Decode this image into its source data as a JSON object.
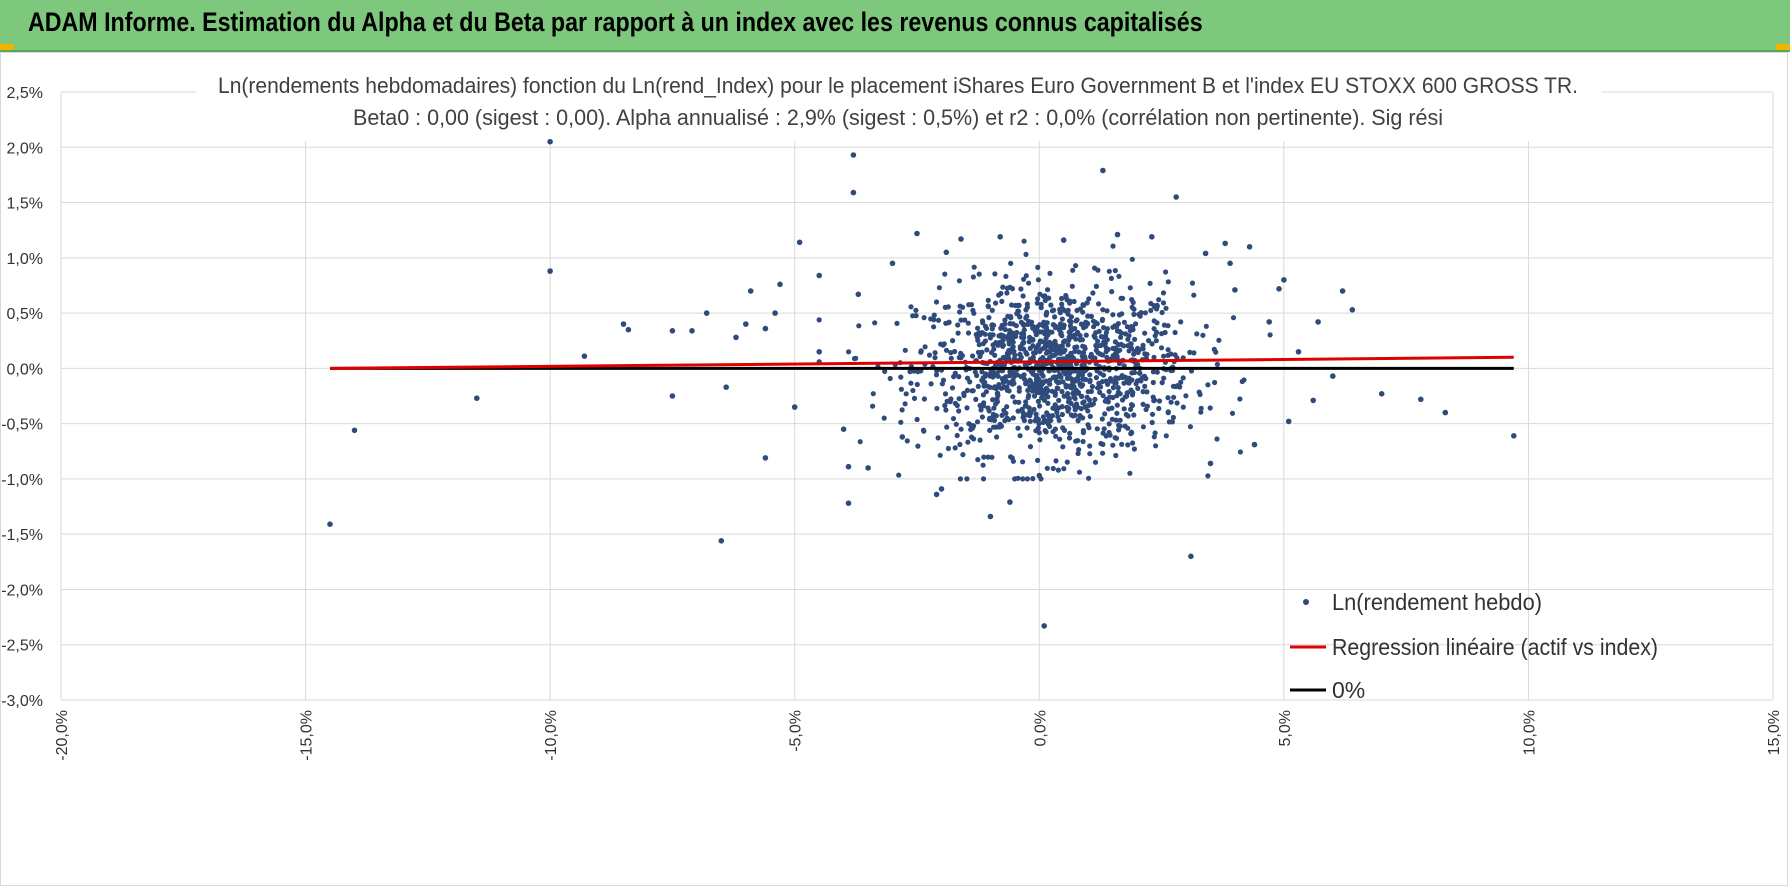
{
  "header": {
    "title": "ADAM Informe. Estimation du Alpha et du Beta par rapport à un index avec les revenus connus capitalisés"
  },
  "colors": {
    "header_bg": "#7ec87e",
    "corner_accent": "#f2b300",
    "points": "#2f4b7c",
    "regression": "#e00000",
    "zero_line": "#000000",
    "grid": "#d9d9d9"
  },
  "chart_data": {
    "type": "scatter",
    "title": "Ln(rendements hebdomadaires) fonction du Ln(rend_Index) pour le placement iShares Euro Government B et l'index EU STOXX 600 GROSS TR.",
    "subtitle": "Beta0 : 0,00 (sigest : 0,00).  Alpha annualisé : 2,9% (sigest : 0,5%) et r2 : 0,0% (corrélation non pertinente). Sig rési",
    "xlabel": "",
    "ylabel": "",
    "xlim": [
      -20,
      15
    ],
    "ylim": [
      -3.0,
      2.5
    ],
    "x_ticks": [
      "-20,0%",
      "-15,0%",
      "-10,0%",
      "-5,0%",
      "0,0%",
      "5,0%",
      "10,0%",
      "15,0%"
    ],
    "y_ticks": [
      "2,5%",
      "2,0%",
      "1,5%",
      "1,0%",
      "0,5%",
      "0,0%",
      "-0,5%",
      "-1,0%",
      "-1,5%",
      "-2,0%",
      "-2,5%",
      "-3,0%"
    ],
    "grid": "vertical and horizontal",
    "legend_position": "bottom-right",
    "legend": [
      "Ln(rendement hebdo)",
      "Regression linéaire (actif vs index)",
      "0%"
    ],
    "series": [
      {
        "name": "Ln(rendement hebdo)",
        "kind": "scatter",
        "points": [
          [
            -14.5,
            -1.41
          ],
          [
            -14.0,
            -0.56
          ],
          [
            -11.5,
            -0.27
          ],
          [
            -10.0,
            2.05
          ],
          [
            -10.0,
            0.88
          ],
          [
            -9.3,
            0.11
          ],
          [
            -8.5,
            0.4
          ],
          [
            -8.4,
            0.35
          ],
          [
            -7.5,
            -0.25
          ],
          [
            -7.5,
            0.34
          ],
          [
            -7.1,
            0.34
          ],
          [
            -6.8,
            0.5
          ],
          [
            -6.5,
            -1.56
          ],
          [
            -6.4,
            -0.17
          ],
          [
            -6.2,
            0.28
          ],
          [
            -6.0,
            0.4
          ],
          [
            -5.9,
            0.7
          ],
          [
            -5.6,
            -0.81
          ],
          [
            -5.6,
            0.36
          ],
          [
            -5.4,
            0.5
          ],
          [
            -5.3,
            0.76
          ],
          [
            -5.0,
            -0.35
          ],
          [
            -4.9,
            1.14
          ],
          [
            -4.5,
            0.15
          ],
          [
            -4.5,
            0.84
          ],
          [
            -4.0,
            -0.55
          ],
          [
            -3.9,
            -1.22
          ],
          [
            -3.9,
            -0.89
          ],
          [
            -3.8,
            1.59
          ],
          [
            -3.8,
            1.93
          ],
          [
            -3.7,
            0.67
          ],
          [
            -3.5,
            -0.9
          ],
          [
            -3.0,
            0.95
          ],
          [
            -2.8,
            -0.62
          ],
          [
            -2.5,
            1.22
          ],
          [
            -2.1,
            -1.14
          ],
          [
            -2.0,
            -1.09
          ],
          [
            -1.9,
            1.05
          ],
          [
            -1.6,
            1.17
          ],
          [
            -1.0,
            -1.34
          ],
          [
            -0.8,
            1.19
          ],
          [
            -0.6,
            -1.21
          ],
          [
            0.0,
            -0.97
          ],
          [
            0.1,
            -2.33
          ],
          [
            0.5,
            1.16
          ],
          [
            1.3,
            1.79
          ],
          [
            1.6,
            1.21
          ],
          [
            2.3,
            1.19
          ],
          [
            2.8,
            1.55
          ],
          [
            3.1,
            -1.7
          ],
          [
            3.4,
            1.04
          ],
          [
            3.5,
            -0.86
          ],
          [
            3.8,
            1.13
          ],
          [
            3.9,
            0.95
          ],
          [
            4.0,
            0.71
          ],
          [
            4.3,
            1.1
          ],
          [
            4.4,
            -0.69
          ],
          [
            4.7,
            0.42
          ],
          [
            4.9,
            0.72
          ],
          [
            5.0,
            0.8
          ],
          [
            5.1,
            -0.48
          ],
          [
            5.3,
            0.15
          ],
          [
            5.6,
            -0.29
          ],
          [
            5.7,
            0.42
          ],
          [
            6.0,
            -0.07
          ],
          [
            6.2,
            0.7
          ],
          [
            6.4,
            0.53
          ],
          [
            7.0,
            -0.23
          ],
          [
            7.8,
            -0.28
          ],
          [
            8.3,
            -0.4
          ],
          [
            9.7,
            -0.61
          ]
        ]
      },
      {
        "name": "Regression linéaire (actif vs index)",
        "kind": "line",
        "points": [
          [
            -14.5,
            0.0
          ],
          [
            9.7,
            0.1
          ]
        ]
      },
      {
        "name": "0%",
        "kind": "line",
        "points": [
          [
            -14.5,
            0.0
          ],
          [
            9.7,
            0.0
          ]
        ]
      }
    ],
    "cloud": {
      "center_x": 0.3,
      "center_y": 0.0,
      "spread_x": 1.4,
      "spread_y": 0.38,
      "count": 1300
    }
  }
}
